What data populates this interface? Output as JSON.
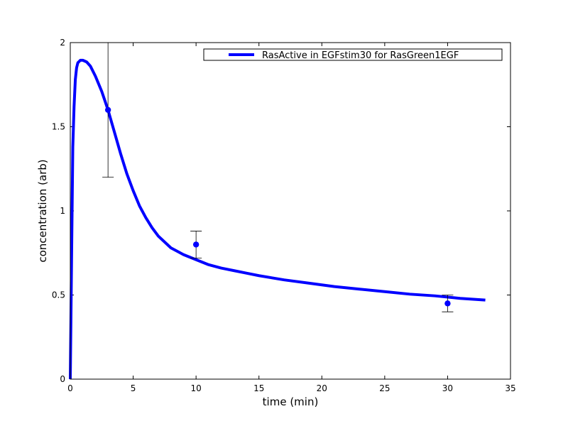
{
  "chart_data": {
    "type": "line",
    "title": "",
    "xlabel": "time (min)",
    "ylabel": "concentration (arb)",
    "xlim": [
      0,
      35
    ],
    "ylim": [
      0,
      2
    ],
    "xticks": [
      0,
      5,
      10,
      15,
      20,
      25,
      30,
      35
    ],
    "yticks": [
      0,
      0.5,
      1,
      1.5,
      2
    ],
    "xtick_labels": [
      "0",
      "5",
      "10",
      "15",
      "20",
      "25",
      "30",
      "35"
    ],
    "ytick_labels": [
      "0",
      "0.5",
      "1",
      "1.5",
      "2"
    ],
    "grid": false,
    "legend_position": "top-right",
    "series": [
      {
        "name": "RasActive in EGFstim30 for RasGreen1EGF",
        "color": "#0000ff",
        "x": [
          0,
          0.1,
          0.2,
          0.3,
          0.4,
          0.5,
          0.6,
          0.8,
          1.0,
          1.3,
          1.6,
          2.0,
          2.5,
          3.0,
          3.5,
          4.0,
          4.5,
          5.0,
          5.5,
          6.0,
          6.5,
          7.0,
          8.0,
          9.0,
          10.0,
          11.0,
          12.0,
          13.0,
          14.0,
          15.0,
          17.0,
          19.0,
          21.0,
          23.0,
          25.0,
          27.0,
          29.0,
          31.0,
          33.0
        ],
        "y": [
          0,
          0.7,
          1.38,
          1.62,
          1.78,
          1.85,
          1.88,
          1.895,
          1.895,
          1.885,
          1.86,
          1.8,
          1.71,
          1.6,
          1.47,
          1.34,
          1.22,
          1.12,
          1.03,
          0.96,
          0.9,
          0.85,
          0.78,
          0.74,
          0.71,
          0.68,
          0.66,
          0.645,
          0.63,
          0.615,
          0.59,
          0.57,
          0.55,
          0.535,
          0.52,
          0.505,
          0.495,
          0.48,
          0.47
        ]
      }
    ],
    "data_points": {
      "color": "#0000ff",
      "points": [
        {
          "x": 3,
          "y": 1.6,
          "err_low": 1.2,
          "err_high": 2.0
        },
        {
          "x": 10,
          "y": 0.8,
          "err_low": 0.72,
          "err_high": 0.88
        },
        {
          "x": 30,
          "y": 0.45,
          "err_low": 0.4,
          "err_high": 0.5
        }
      ]
    }
  }
}
